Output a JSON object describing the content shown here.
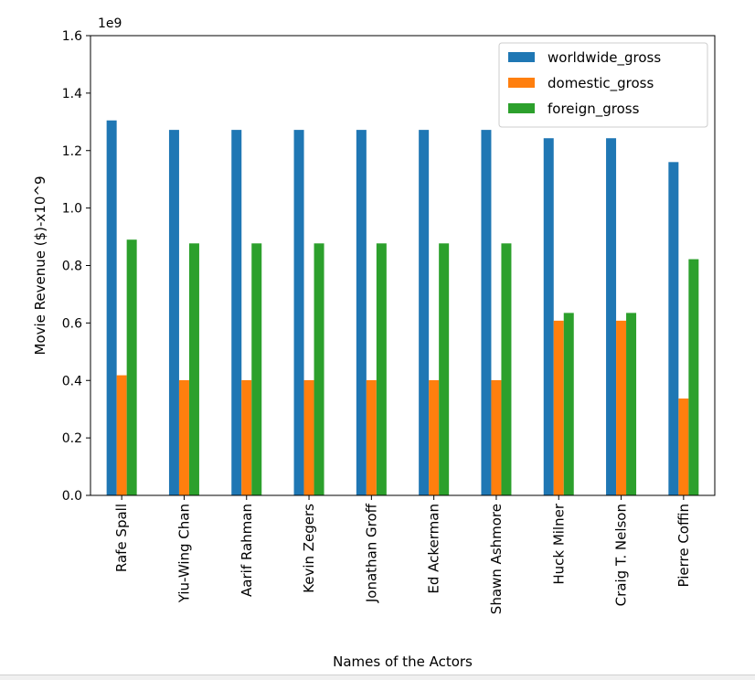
{
  "chart_data": {
    "type": "bar",
    "title": "",
    "xlabel": "Names of the Actors",
    "ylabel": "Movie Revenue ($)-x10^9",
    "offset_text": "1e9",
    "ylim": [
      0,
      1.6
    ],
    "yticks": [
      "0.0",
      "0.2",
      "0.4",
      "0.6",
      "0.8",
      "1.0",
      "1.2",
      "1.4",
      "1.6"
    ],
    "grid": false,
    "legend_position": "top-right",
    "categories": [
      "Rafe Spall",
      "Yiu-Wing Chan",
      "Aarif Rahman",
      "Kevin Zegers",
      "Jonathan Groff",
      "Ed Ackerman",
      "Shawn Ashmore",
      "Huck Milner",
      "Craig T. Nelson",
      "Pierre Coffin"
    ],
    "series": [
      {
        "name": "worldwide_gross",
        "color": "#1f77b4",
        "values": [
          1.305,
          1.272,
          1.272,
          1.272,
          1.272,
          1.272,
          1.272,
          1.243,
          1.243,
          1.16
        ]
      },
      {
        "name": "domestic_gross",
        "color": "#ff7f0e",
        "values": [
          0.418,
          0.401,
          0.401,
          0.401,
          0.401,
          0.401,
          0.401,
          0.608,
          0.608,
          0.337
        ]
      },
      {
        "name": "foreign_gross",
        "color": "#2ca02c",
        "values": [
          0.89,
          0.877,
          0.877,
          0.877,
          0.877,
          0.877,
          0.877,
          0.635,
          0.635,
          0.822
        ]
      }
    ]
  }
}
